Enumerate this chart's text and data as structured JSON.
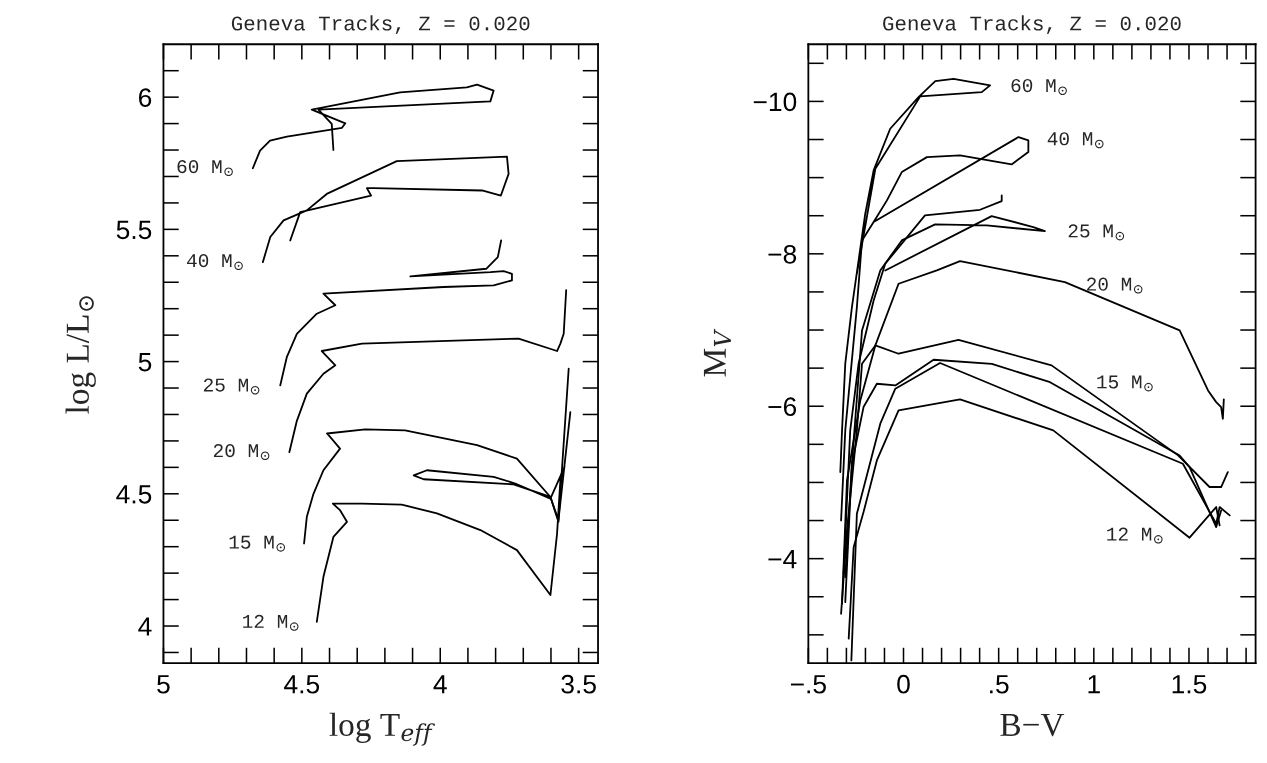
{
  "chart_data": [
    {
      "type": "line",
      "title": "Geneva Tracks, Z = 0.020",
      "xlabel": "log T$_{eff}$",
      "ylabel": "log L/L$_{⊙}$",
      "xlim": [
        5,
        3.43
      ],
      "ylim": [
        3.86,
        6.2
      ],
      "xticks": [
        {
          "value": 5,
          "label": "5"
        },
        {
          "value": 4.9,
          "label": null
        },
        {
          "value": 4.8,
          "label": null
        },
        {
          "value": 4.7,
          "label": null
        },
        {
          "value": 4.6,
          "label": null
        },
        {
          "value": 4.5,
          "label": "4.5"
        },
        {
          "value": 4.4,
          "label": null
        },
        {
          "value": 4.3,
          "label": null
        },
        {
          "value": 4.2,
          "label": null
        },
        {
          "value": 4.1,
          "label": null
        },
        {
          "value": 4,
          "label": "4"
        },
        {
          "value": 3.9,
          "label": null
        },
        {
          "value": 3.8,
          "label": null
        },
        {
          "value": 3.7,
          "label": null
        },
        {
          "value": 3.6,
          "label": null
        },
        {
          "value": 3.5,
          "label": "3.5"
        }
      ],
      "yticks": [
        {
          "value": 3.9,
          "label": null
        },
        {
          "value": 4,
          "label": "4"
        },
        {
          "value": 4.1,
          "label": null
        },
        {
          "value": 4.2,
          "label": null
        },
        {
          "value": 4.3,
          "label": null
        },
        {
          "value": 4.4,
          "label": null
        },
        {
          "value": 4.5,
          "label": "4.5"
        },
        {
          "value": 4.6,
          "label": null
        },
        {
          "value": 4.7,
          "label": null
        },
        {
          "value": 4.8,
          "label": null
        },
        {
          "value": 4.9,
          "label": null
        },
        {
          "value": 5,
          "label": "5"
        },
        {
          "value": 5.1,
          "label": null
        },
        {
          "value": 5.2,
          "label": null
        },
        {
          "value": 5.3,
          "label": null
        },
        {
          "value": 5.4,
          "label": null
        },
        {
          "value": 5.5,
          "label": "5.5"
        },
        {
          "value": 5.6,
          "label": null
        },
        {
          "value": 5.7,
          "label": null
        },
        {
          "value": 5.8,
          "label": null
        },
        {
          "value": 5.9,
          "label": null
        },
        {
          "value": 6,
          "label": "6"
        },
        {
          "value": 6.1,
          "label": null
        }
      ],
      "series": [
        {
          "color": "#000000",
          "x": [
            4.677,
            4.651,
            4.615,
            4.554,
            4.355,
            4.343,
            4.464,
            4.145,
            3.904,
            3.867,
            3.807,
            3.819,
            4.44,
            4.392,
            4.386
          ],
          "values": [
            5.731,
            5.798,
            5.836,
            5.851,
            5.884,
            5.901,
            5.953,
            6.018,
            6.037,
            6.047,
            6.025,
            5.984,
            5.953,
            5.899,
            5.8
          ]
        },
        {
          "color": "#000000",
          "x": [
            4.641,
            4.614,
            4.566,
            4.482,
            4.41,
            4.157,
            3.759,
            3.753,
            3.781,
            3.849,
            4.241,
            4.265,
            4.25,
            4.506,
            4.542
          ],
          "values": [
            5.376,
            5.471,
            5.534,
            5.572,
            5.634,
            5.758,
            5.775,
            5.71,
            5.628,
            5.647,
            5.656,
            5.656,
            5.628,
            5.565,
            5.458
          ]
        },
        {
          "color": "#000000",
          "x": [
            4.578,
            4.554,
            4.518,
            4.446,
            4.379,
            4.422,
            3.988,
            3.807,
            3.741,
            3.741,
            3.771,
            3.819,
            4.108,
            3.834,
            3.792,
            3.78
          ],
          "values": [
            4.91,
            5.018,
            5.105,
            5.181,
            5.213,
            5.257,
            5.282,
            5.288,
            5.307,
            5.332,
            5.342,
            5.338,
            5.322,
            5.351,
            5.395,
            5.458
          ]
        },
        {
          "color": "#000000",
          "x": [
            4.545,
            4.518,
            4.482,
            4.422,
            4.379,
            4.428,
            4.283,
            3.717,
            3.578,
            3.566,
            3.554,
            3.545
          ],
          "values": [
            4.658,
            4.776,
            4.879,
            4.954,
            4.986,
            5.04,
            5.068,
            5.087,
            5.04,
            5.068,
            5.105,
            5.27
          ]
        },
        {
          "color": "#000000",
          "x": [
            4.492,
            4.482,
            4.458,
            4.422,
            4.362,
            4.398,
            4.409,
            4.271,
            4.127,
            3.867,
            3.723,
            3.602,
            3.573,
            3.536
          ],
          "values": [
            4.312,
            4.413,
            4.5,
            4.589,
            4.671,
            4.715,
            4.728,
            4.744,
            4.74,
            4.684,
            4.633,
            4.488,
            4.394,
            4.973
          ]
        },
        {
          "color": "#000000",
          "x": [
            4.446,
            4.422,
            4.386,
            4.337,
            4.362,
            4.388,
            4.283,
            4.139,
            4.012,
            3.855,
            3.723,
            3.602,
            3.578,
            3.566,
            3.551,
            3.602,
            3.729,
            3.807,
            4.048,
            4.096,
            4.06,
            3.735,
            3.602,
            3.573,
            3.53
          ],
          "values": [
            4.016,
            4.186,
            4.337,
            4.394,
            4.438,
            4.463,
            4.463,
            4.459,
            4.426,
            4.363,
            4.287,
            4.117,
            4.349,
            4.551,
            4.602,
            4.482,
            4.539,
            4.564,
            4.589,
            4.57,
            4.555,
            4.536,
            4.488,
            4.4,
            4.809
          ]
        }
      ],
      "annotations": [
        "60 M$_{⊙}$",
        "40 M$_{⊙}$",
        "25 M$_{⊙}$",
        "20 M$_{⊙}$",
        "15 M$_{⊙}$",
        "12 M$_{⊙}$"
      ]
    },
    {
      "type": "line",
      "title": "Geneva Tracks, Z = 0.020",
      "xlabel": "B−V",
      "ylabel": "M$_{V}$",
      "xlim": [
        -0.5,
        1.85
      ],
      "ylim": [
        -2.63,
        -10.75
      ],
      "xticks": [
        {
          "value": -0.5,
          "label": "−.5"
        },
        {
          "value": -0.4,
          "label": null
        },
        {
          "value": -0.3,
          "label": null
        },
        {
          "value": -0.2,
          "label": null
        },
        {
          "value": -0.1,
          "label": null
        },
        0,
        {
          "value": 0.1,
          "label": null
        },
        {
          "value": 0.2,
          "label": null
        },
        {
          "value": 0.3,
          "label": null
        },
        {
          "value": 0.4,
          "label": null
        },
        {
          "value": 0.5,
          "label": ".5"
        },
        {
          "value": 0.6,
          "label": null
        },
        {
          "value": 0.7,
          "label": null
        },
        {
          "value": 0.8,
          "label": null
        },
        {
          "value": 0.9,
          "label": null
        },
        1,
        {
          "value": 1.1,
          "label": null
        },
        {
          "value": 1.2,
          "label": null
        },
        {
          "value": 1.3,
          "label": null
        },
        {
          "value": 1.4,
          "label": null
        },
        1.5,
        {
          "value": 1.6,
          "label": null
        },
        {
          "value": 1.7,
          "label": null
        },
        {
          "value": 1.8,
          "label": null
        }
      ],
      "yticks": [
        {
          "value": -10.5,
          "label": null
        },
        {
          "value": -10,
          "label": "−10"
        },
        {
          "value": -9.5,
          "label": null
        },
        {
          "value": -9,
          "label": null
        },
        {
          "value": -8.5,
          "label": null
        },
        {
          "value": -8,
          "label": "−8"
        },
        {
          "value": -7.5,
          "label": null
        },
        {
          "value": -7,
          "label": null
        },
        {
          "value": -6.5,
          "label": null
        },
        {
          "value": -6,
          "label": "−6"
        },
        {
          "value": -5.5,
          "label": null
        },
        {
          "value": -5,
          "label": null
        },
        {
          "value": -4.5,
          "label": null
        },
        {
          "value": -4,
          "label": "−4"
        },
        {
          "value": -3.5,
          "label": null
        },
        {
          "value": -3,
          "label": null
        }
      ],
      "series": [
        {
          "color": "#000000",
          "x": [
            -0.332,
            -0.323,
            -0.306,
            -0.271,
            -0.201,
            -0.157,
            -0.07,
            0.079,
            0.167,
            0.263,
            0.455,
            0.411,
            0.088,
            -0.148,
            -0.245
          ],
          "values": [
            -5.136,
            -5.683,
            -6.558,
            -7.301,
            -8.526,
            -9.094,
            -9.641,
            -10.057,
            -10.267,
            -10.297,
            -10.21,
            -10.122,
            -10.066,
            -9.116,
            -7.739
          ]
        },
        {
          "color": "#000000",
          "x": [
            -0.328,
            -0.306,
            -0.245,
            -0.218,
            -0.157,
            -0.087,
            -0.009,
            0.123,
            0.297,
            0.568,
            0.656,
            0.656,
            0.604,
            -0.157
          ],
          "values": [
            -4.501,
            -5.683,
            -7.301,
            -8.176,
            -8.417,
            -8.701,
            -9.073,
            -9.269,
            -9.291,
            -9.173,
            -9.335,
            -9.488,
            -9.532,
            -8.417
          ]
        },
        {
          "color": "#000000",
          "x": [
            -0.306,
            -0.271,
            -0.218,
            -0.122,
            -0.009,
            0.166,
            0.437,
            0.743,
            0.682,
            0.463,
            -0.096
          ],
          "values": [
            -3.43,
            -5.245,
            -6.995,
            -7.782,
            -8.176,
            -8.386,
            -8.373,
            -8.298,
            -8.351,
            -8.495,
            -7.782
          ]
        },
        {
          "color": "#000000",
          "x": [
            -0.315,
            -0.28,
            -0.236,
            -0.157,
            -0.096,
            0.113,
            0.402,
            0.516,
            0.516
          ],
          "values": [
            -3.8,
            -5.683,
            -6.558,
            -7.388,
            -7.87,
            -8.504,
            -8.578,
            -8.692,
            -8.766
          ]
        },
        {
          "color": "#000000",
          "x": [
            -0.328,
            -0.297,
            -0.245,
            -0.218,
            -0.148,
            -0.026,
            0.175,
            0.297,
            0.848,
            1.451,
            1.6,
            1.643,
            1.669,
            1.678,
            1.683
          ],
          "values": [
            -3.277,
            -4.37,
            -5.683,
            -6.558,
            -6.798,
            -7.607,
            -7.782,
            -7.905,
            -7.629,
            -6.995,
            -6.207,
            -6.054,
            -5.988,
            -5.835,
            -6.09
          ]
        },
        {
          "color": "#000000",
          "x": [
            -0.323,
            -0.297,
            -0.227,
            -0.148,
            -0.026,
            0.289,
            0.778,
            1.443,
            1.608,
            1.669,
            1.704
          ],
          "values": [
            -3.408,
            -5.026,
            -6.076,
            -6.798,
            -6.689,
            -6.872,
            -6.536,
            -5.355,
            -4.94,
            -4.94,
            -5.136
          ]
        },
        {
          "color": "#000000",
          "x": [
            -0.306,
            -0.271,
            -0.21,
            -0.14,
            -0.043,
            0.158,
            0.464,
            0.77,
            1.451,
            1.503,
            1.643,
            1.669
          ],
          "values": [
            -3.758,
            -5.245,
            -5.989,
            -6.295,
            -6.273,
            -6.61,
            -6.556,
            -6.315,
            -5.353,
            -5.2,
            -4.414,
            -4.633
          ]
        },
        {
          "color": "#000000",
          "x": [
            -0.274,
            -0.245,
            -0.122,
            -0.043,
            0.192,
            1.468,
            1.643,
            1.661,
            1.714
          ],
          "values": [
            -2.664,
            -4.589,
            -5.771,
            -6.23,
            -6.567,
            -5.245,
            -4.458,
            -4.677,
            -4.568
          ]
        },
        {
          "color": "#000000",
          "x": [
            -0.288,
            -0.262,
            -0.21,
            -0.14,
            -0.026,
            0.297,
            0.787,
            1.503,
            1.643,
            1.661
          ],
          "values": [
            -2.95,
            -4.151,
            -4.611,
            -5.289,
            -5.945,
            -6.089,
            -5.683,
            -4.275,
            -4.677,
            -4.436
          ]
        }
      ],
      "annotations": [
        "60 M$_{⊙}$",
        "40 M$_{⊙}$",
        "25 M$_{⊙}$",
        "20 M$_{⊙}$",
        "15 M$_{⊙}$",
        "12 M$_{⊙}$"
      ]
    }
  ]
}
